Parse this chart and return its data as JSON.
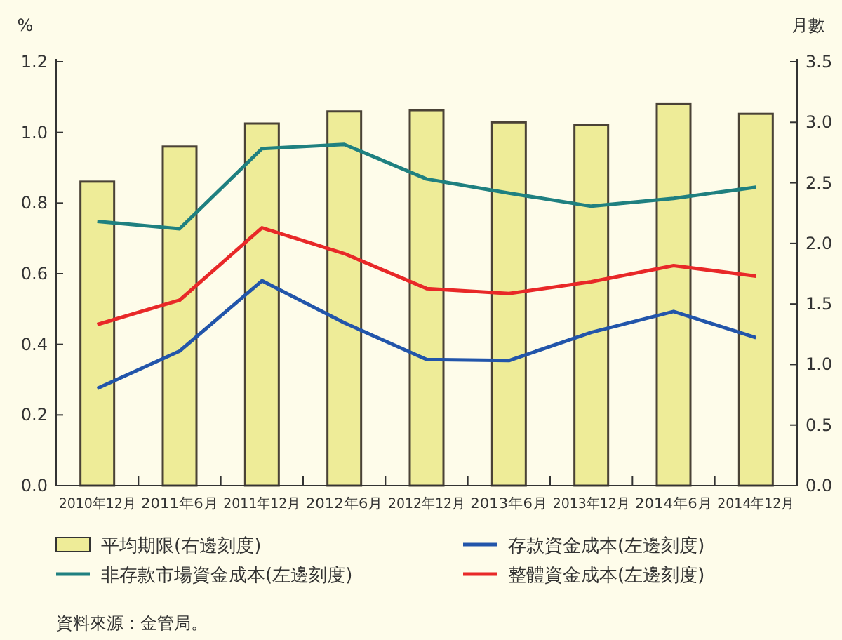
{
  "chart_data": {
    "type": "bar",
    "ylabel": "%",
    "y2label": "月數",
    "legend": "bottom",
    "categories": [
      "2010年12月",
      "2011年6月",
      "2011年12月",
      "2012年6月",
      "2012年12月",
      "2013年6月",
      "2013年12月",
      "2014年6月",
      "2014年12月"
    ],
    "series": [
      {
        "name": "平均期限(右邊刻度)",
        "axis": "y2",
        "color": "#eeec98",
        "values": [
          2.51,
          2.8,
          2.99,
          3.09,
          3.1,
          3.0,
          2.98,
          3.15,
          3.07
        ]
      },
      {
        "name": "存款資金成本(左邊刻度)",
        "type": "line",
        "color": "#2255aa",
        "values": [
          0.275,
          0.381,
          0.58,
          0.461,
          0.357,
          0.354,
          0.434,
          0.493,
          0.419
        ]
      },
      {
        "name": "非存款市場資金成本(左邊刻度)",
        "type": "line",
        "color": "#1f8080",
        "values": [
          0.748,
          0.727,
          0.954,
          0.966,
          0.868,
          0.828,
          0.791,
          0.813,
          0.845
        ]
      },
      {
        "name": "整體資金成本(左邊刻度)",
        "type": "line",
        "color": "#e82828",
        "values": [
          0.456,
          0.525,
          0.73,
          0.657,
          0.558,
          0.544,
          0.577,
          0.623,
          0.593
        ]
      }
    ],
    "ylim": [
      0,
      1.2
    ],
    "yticks": [
      {
        "value": 0,
        "label": "0.0"
      },
      0.2,
      0.4,
      0.6,
      0.8,
      {
        "value": 1,
        "label": "1.0"
      },
      1.2
    ],
    "y2lim": [
      0,
      3.5
    ],
    "y2ticks": [
      {
        "value": 0,
        "label": "0.0"
      },
      0.5,
      {
        "value": 1,
        "label": "1.0"
      },
      1.5,
      {
        "value": 2,
        "label": "2.0"
      },
      2.5,
      {
        "value": 3,
        "label": "3.0"
      },
      3.5
    ],
    "annotations": [
      "資料來源：金管局。"
    ]
  }
}
